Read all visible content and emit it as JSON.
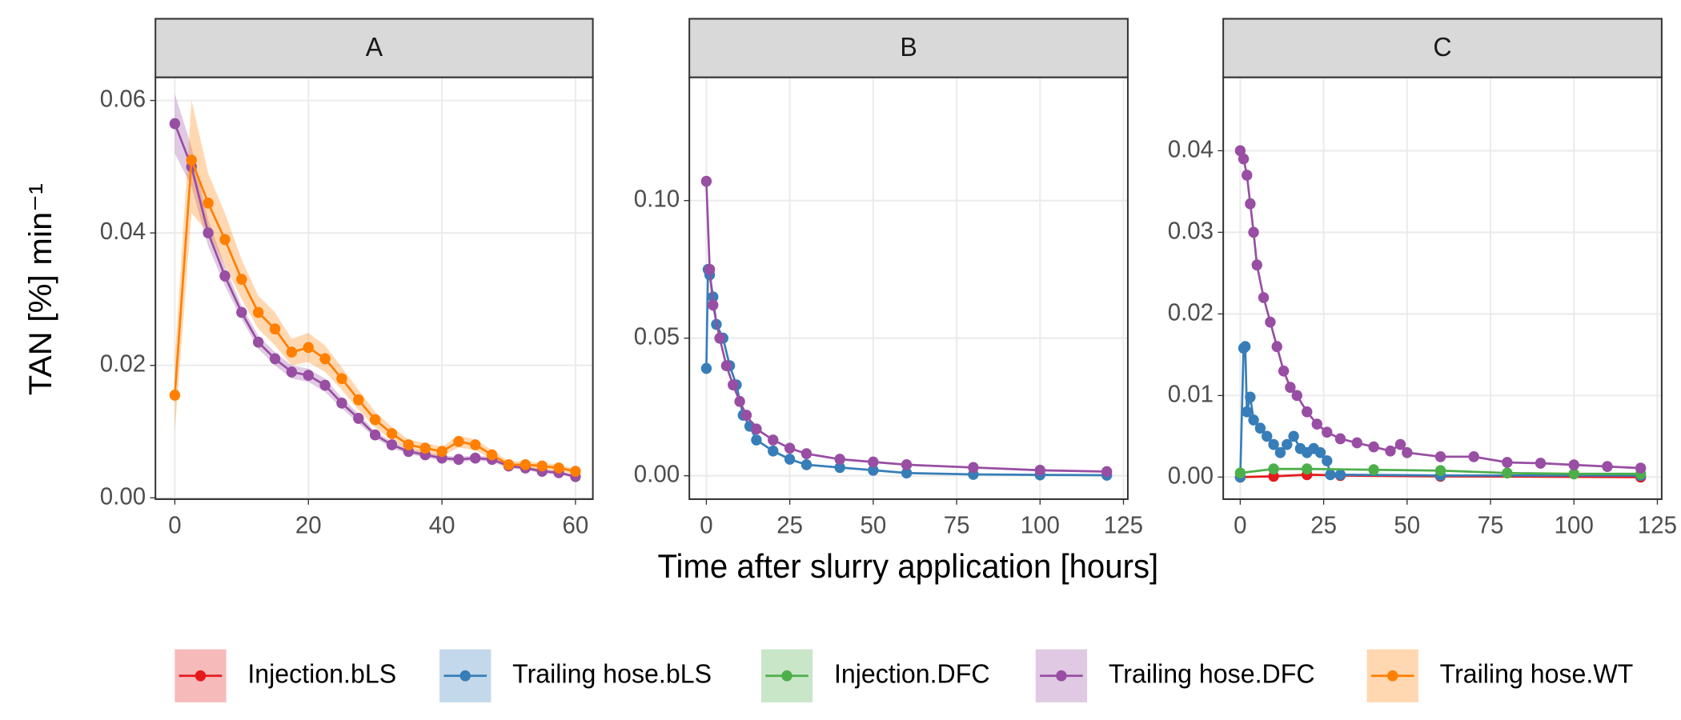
{
  "chart_data": [
    {
      "type": "line",
      "facet": "A",
      "ylabel": "TAN [%]  min⁻¹",
      "xlim": [
        -2.9,
        62.6
      ],
      "xticks": [
        0,
        20,
        40,
        60
      ],
      "ylim": [
        -0.0002,
        0.0635
      ],
      "yticks": [
        {
          "value": 0,
          "label": "0.00"
        },
        {
          "value": 0.02,
          "label": "0.02"
        },
        {
          "value": 0.04,
          "label": "0.04"
        },
        {
          "value": 0.06,
          "label": "0.06"
        }
      ],
      "grid": true,
      "series": [
        {
          "name": "Trailing hose.DFC",
          "color": "#984ea3",
          "x": [
            0,
            2.5,
            5,
            7.5,
            10,
            12.5,
            15,
            17.5,
            20,
            22.5,
            25,
            27.5,
            30,
            32.5,
            35,
            37.5,
            40,
            42.5,
            45,
            47.5,
            50,
            52.5,
            55,
            57.5,
            60
          ],
          "values": [
            0.0565,
            0.05,
            0.04,
            0.0335,
            0.028,
            0.0235,
            0.021,
            0.019,
            0.0185,
            0.017,
            0.0143,
            0.012,
            0.0095,
            0.008,
            0.007,
            0.0065,
            0.006,
            0.0058,
            0.006,
            0.0058,
            0.0048,
            0.0045,
            0.004,
            0.0038,
            0.0032
          ],
          "lower": [
            0.052,
            0.047,
            0.038,
            0.032,
            0.027,
            0.0225,
            0.02,
            0.018,
            0.0175,
            0.016,
            0.0135,
            0.0113,
            0.009,
            0.0075,
            0.0066,
            0.0061,
            0.0056,
            0.0054,
            0.0056,
            0.0054,
            0.0045,
            0.0042,
            0.0037,
            0.0035,
            0.003
          ],
          "upper": [
            0.061,
            0.053,
            0.042,
            0.035,
            0.029,
            0.0245,
            0.022,
            0.02,
            0.0195,
            0.018,
            0.0151,
            0.0127,
            0.01,
            0.0085,
            0.0074,
            0.0069,
            0.0064,
            0.0062,
            0.0064,
            0.0062,
            0.0051,
            0.0048,
            0.0043,
            0.0041,
            0.0034
          ]
        },
        {
          "name": "Trailing hose.WT",
          "color": "#ff7f00",
          "x": [
            0,
            2.5,
            5,
            7.5,
            10,
            12.5,
            15,
            17.5,
            20,
            22.5,
            25,
            27.5,
            30,
            32.5,
            35,
            37.5,
            40,
            42.5,
            45,
            47.5,
            50,
            52.5,
            55,
            57.5,
            60
          ],
          "values": [
            0.0155,
            0.051,
            0.0445,
            0.039,
            0.033,
            0.028,
            0.0255,
            0.022,
            0.0227,
            0.021,
            0.018,
            0.0148,
            0.0118,
            0.0097,
            0.008,
            0.0075,
            0.007,
            0.0085,
            0.008,
            0.0065,
            0.005,
            0.005,
            0.0048,
            0.0045,
            0.004
          ],
          "lower": [
            0.01,
            0.043,
            0.04,
            0.035,
            0.03,
            0.0255,
            0.023,
            0.02,
            0.0205,
            0.019,
            0.0163,
            0.0133,
            0.0106,
            0.0087,
            0.0072,
            0.0067,
            0.0063,
            0.0076,
            0.0072,
            0.0058,
            0.0045,
            0.0045,
            0.0043,
            0.004,
            0.0036
          ],
          "upper": [
            0.021,
            0.06,
            0.049,
            0.043,
            0.036,
            0.0305,
            0.028,
            0.024,
            0.0249,
            0.023,
            0.0197,
            0.0163,
            0.013,
            0.0107,
            0.0088,
            0.0083,
            0.0077,
            0.0094,
            0.0088,
            0.0072,
            0.0055,
            0.0055,
            0.0053,
            0.005,
            0.0044
          ]
        }
      ]
    },
    {
      "type": "line",
      "facet": "B",
      "xlabel": "Time after slurry application [hours]",
      "xlim": [
        -5.1,
        126.3
      ],
      "xticks": [
        0,
        25,
        50,
        75,
        100,
        125
      ],
      "ylim": [
        -0.0085,
        0.1448
      ],
      "yticks": [
        {
          "value": 0,
          "label": "0.00"
        },
        {
          "value": 0.05,
          "label": "0.05"
        },
        {
          "value": 0.1,
          "label": "0.10"
        }
      ],
      "grid": true,
      "series": [
        {
          "name": "Trailing hose.bLS",
          "color": "#377eb8",
          "x": [
            0,
            0.5,
            1,
            2,
            3,
            5,
            7,
            9,
            11,
            13,
            15,
            20,
            25,
            30,
            40,
            50,
            60,
            80,
            100,
            120
          ],
          "values": [
            0.039,
            0.075,
            0.073,
            0.065,
            0.055,
            0.05,
            0.04,
            0.033,
            0.022,
            0.018,
            0.013,
            0.009,
            0.006,
            0.004,
            0.003,
            0.002,
            0.001,
            0.0005,
            0.0003,
            0.0002
          ]
        },
        {
          "name": "Trailing hose.DFC",
          "color": "#984ea3",
          "x": [
            0,
            1,
            2,
            4,
            6,
            8,
            10,
            12,
            15,
            20,
            25,
            30,
            40,
            50,
            60,
            80,
            100,
            120
          ],
          "values": [
            0.107,
            0.075,
            0.062,
            0.05,
            0.04,
            0.033,
            0.027,
            0.022,
            0.017,
            0.013,
            0.01,
            0.008,
            0.006,
            0.005,
            0.004,
            0.003,
            0.002,
            0.0015
          ]
        }
      ]
    },
    {
      "type": "line",
      "facet": "C",
      "xlim": [
        -5.1,
        126.3
      ],
      "xticks": [
        0,
        25,
        50,
        75,
        100,
        125
      ],
      "ylim": [
        -0.0027,
        0.049
      ],
      "yticks": [
        {
          "value": 0,
          "label": "0.00"
        },
        {
          "value": 0.01,
          "label": "0.01"
        },
        {
          "value": 0.02,
          "label": "0.02"
        },
        {
          "value": 0.03,
          "label": "0.03"
        },
        {
          "value": 0.04,
          "label": "0.04"
        }
      ],
      "grid": true,
      "series": [
        {
          "name": "Injection.bLS",
          "color": "#e41a1c",
          "x": [
            0,
            10,
            20,
            30,
            60,
            120
          ],
          "values": [
            0,
            0.0001,
            0.0003,
            0.0002,
            0.0001,
            0
          ]
        },
        {
          "name": "Trailing hose.bLS",
          "color": "#377eb8",
          "x": [
            0,
            1,
            1.5,
            2,
            3,
            4,
            6,
            8,
            10,
            12,
            14,
            16,
            18,
            20,
            22,
            24,
            26,
            27,
            30,
            60,
            120
          ],
          "values": [
            0,
            0.0158,
            0.016,
            0.008,
            0.0098,
            0.007,
            0.006,
            0.005,
            0.004,
            0.003,
            0.004,
            0.005,
            0.0035,
            0.003,
            0.0035,
            0.003,
            0.002,
            0.0003,
            0.0003,
            0.0002,
            0.0002
          ]
        },
        {
          "name": "Injection.DFC",
          "color": "#4daf4a",
          "x": [
            0,
            10,
            20,
            40,
            60,
            80,
            100,
            120
          ],
          "values": [
            0.0005,
            0.001,
            0.001,
            0.0009,
            0.0008,
            0.0005,
            0.0004,
            0.0004
          ]
        },
        {
          "name": "Trailing hose.DFC",
          "color": "#984ea3",
          "x": [
            0,
            1,
            2,
            3,
            4,
            5,
            7,
            9,
            11,
            13,
            15,
            17,
            20,
            23,
            26,
            30,
            35,
            40,
            45,
            48,
            50,
            60,
            70,
            80,
            90,
            100,
            110,
            120
          ],
          "values": [
            0.04,
            0.039,
            0.037,
            0.0335,
            0.03,
            0.026,
            0.022,
            0.019,
            0.016,
            0.013,
            0.011,
            0.01,
            0.008,
            0.0065,
            0.0055,
            0.0047,
            0.0042,
            0.0037,
            0.0032,
            0.004,
            0.003,
            0.0025,
            0.0025,
            0.0018,
            0.0017,
            0.0015,
            0.0013,
            0.0011
          ]
        }
      ]
    }
  ]
}
